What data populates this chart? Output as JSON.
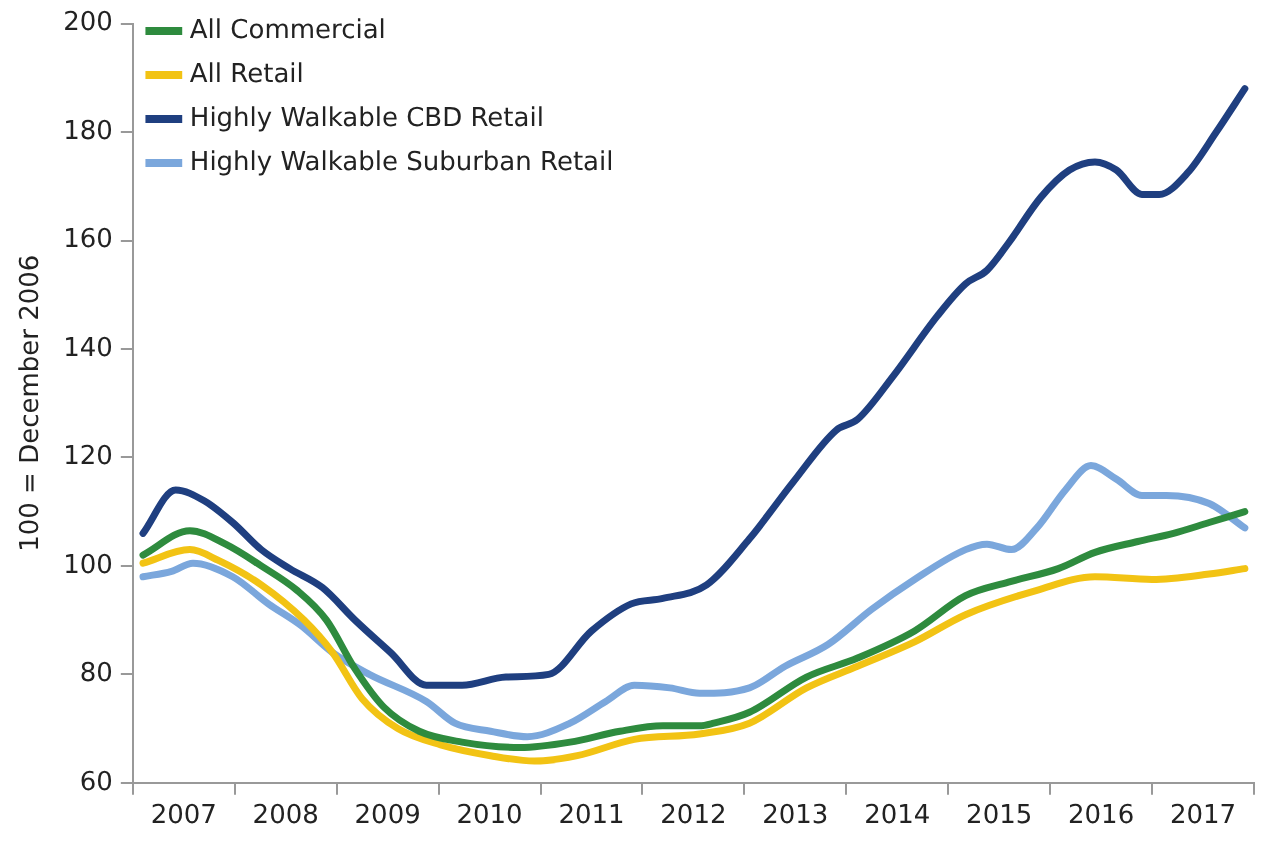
{
  "chart_data": {
    "type": "line",
    "ylabel": "100 = December 2006",
    "ylim": [
      60,
      200
    ],
    "yticks": [
      60,
      80,
      100,
      120,
      140,
      160,
      180,
      200
    ],
    "xlim": [
      2007,
      2018
    ],
    "xticks": [
      {
        "value": 2007,
        "label": null
      },
      {
        "value": 2007.5,
        "label": "2007"
      },
      {
        "value": 2008,
        "label": null
      },
      {
        "value": 2008.5,
        "label": "2008"
      },
      {
        "value": 2009,
        "label": null
      },
      {
        "value": 2009.5,
        "label": "2009"
      },
      {
        "value": 2010,
        "label": null
      },
      {
        "value": 2010.5,
        "label": "2010"
      },
      {
        "value": 2011,
        "label": null
      },
      {
        "value": 2011.5,
        "label": "2011"
      },
      {
        "value": 2012,
        "label": null
      },
      {
        "value": 2012.5,
        "label": "2012"
      },
      {
        "value": 2013,
        "label": null
      },
      {
        "value": 2013.5,
        "label": "2013"
      },
      {
        "value": 2014,
        "label": null
      },
      {
        "value": 2014.5,
        "label": "2014"
      },
      {
        "value": 2015,
        "label": null
      },
      {
        "value": 2015.5,
        "label": "2015"
      },
      {
        "value": 2016,
        "label": null
      },
      {
        "value": 2016.5,
        "label": "2016"
      },
      {
        "value": 2017,
        "label": null
      },
      {
        "value": 2017.5,
        "label": "2017"
      },
      {
        "value": 2018,
        "label": null
      }
    ],
    "grid": false,
    "legend": "top left",
    "marker": "none",
    "line_style": "solid",
    "series": [
      {
        "name": "All Commercial",
        "color": "#2e8b3e",
        "x": [
          2007.1,
          2007.56,
          2007.91,
          2008.26,
          2008.61,
          2008.9,
          2009.18,
          2009.46,
          2009.81,
          2010.23,
          2010.8,
          2011.29,
          2011.78,
          2012.2,
          2012.56,
          2012.7,
          2013.05,
          2013.61,
          2014.11,
          2014.67,
          2015.17,
          2015.59,
          2016.08,
          2016.44,
          2016.86,
          2017.21,
          2017.56,
          2017.91
        ],
        "values": [
          102,
          106.5,
          104,
          100,
          95.5,
          90,
          81,
          74,
          69.5,
          67.5,
          66.5,
          67.5,
          69.5,
          70.5,
          70.5,
          71,
          73,
          79.5,
          83,
          88,
          94.5,
          97,
          99.5,
          102.5,
          104.5,
          106,
          108,
          110
        ]
      },
      {
        "name": "All Retail",
        "color": "#f2c314",
        "x": [
          2007.1,
          2007.56,
          2007.84,
          2008.26,
          2008.68,
          2008.96,
          2009.25,
          2009.6,
          2010.02,
          2010.51,
          2010.94,
          2011.36,
          2011.92,
          2012.56,
          2013.05,
          2013.61,
          2014.11,
          2014.67,
          2015.17,
          2015.87,
          2016.44,
          2017.0,
          2017.56,
          2017.91
        ],
        "values": [
          100.5,
          103,
          101,
          96.5,
          90,
          84,
          75.5,
          70,
          67,
          65,
          64,
          65,
          68,
          69,
          71,
          77.5,
          81.5,
          86,
          91,
          95.5,
          98,
          97.5,
          98.5,
          99.5
        ]
      },
      {
        "name": "Highly Walkable CBD Retail",
        "color": "#1f3f80",
        "x": [
          2007.1,
          2007.42,
          2007.7,
          2007.98,
          2008.26,
          2008.54,
          2008.86,
          2009.18,
          2009.53,
          2009.88,
          2010.23,
          2010.66,
          2011.08,
          2011.5,
          2011.89,
          2012.2,
          2012.63,
          2013.05,
          2013.48,
          2013.9,
          2014.11,
          2014.46,
          2014.89,
          2015.17,
          2015.38,
          2015.59,
          2015.91,
          2016.19,
          2016.44,
          2016.65,
          2016.9,
          2017.07,
          2017.35,
          2017.63,
          2017.91
        ],
        "values": [
          106,
          114,
          112,
          108,
          103,
          99.5,
          96,
          90,
          84,
          78,
          78,
          79.5,
          80,
          88,
          93,
          94,
          96.5,
          105,
          115.5,
          125,
          127,
          135,
          146,
          152,
          154.5,
          159.5,
          168,
          173,
          174.5,
          173,
          168.5,
          168.5,
          172.5,
          180,
          188
        ]
      },
      {
        "name": "Highly Walkable Suburban Retail",
        "color": "#7ba7dc",
        "x": [
          2007.1,
          2007.38,
          2007.59,
          2007.98,
          2008.33,
          2008.65,
          2008.96,
          2009.32,
          2009.88,
          2010.16,
          2010.51,
          2010.87,
          2011.29,
          2011.64,
          2011.92,
          2012.27,
          2012.56,
          2013.05,
          2013.4,
          2013.82,
          2014.25,
          2014.67,
          2015.17,
          2015.38,
          2015.62,
          2015.87,
          2016.15,
          2016.4,
          2016.65,
          2016.9,
          2017.14,
          2017.56,
          2017.91
        ],
        "values": [
          98,
          99,
          100.5,
          98,
          93,
          89,
          84,
          80,
          75,
          71,
          69.5,
          68.5,
          71,
          75,
          78,
          77.5,
          76.5,
          77.5,
          81.5,
          85.5,
          92,
          97.5,
          103,
          104,
          103,
          107,
          114,
          118.5,
          116,
          113,
          113,
          111.5,
          107
        ]
      }
    ]
  }
}
